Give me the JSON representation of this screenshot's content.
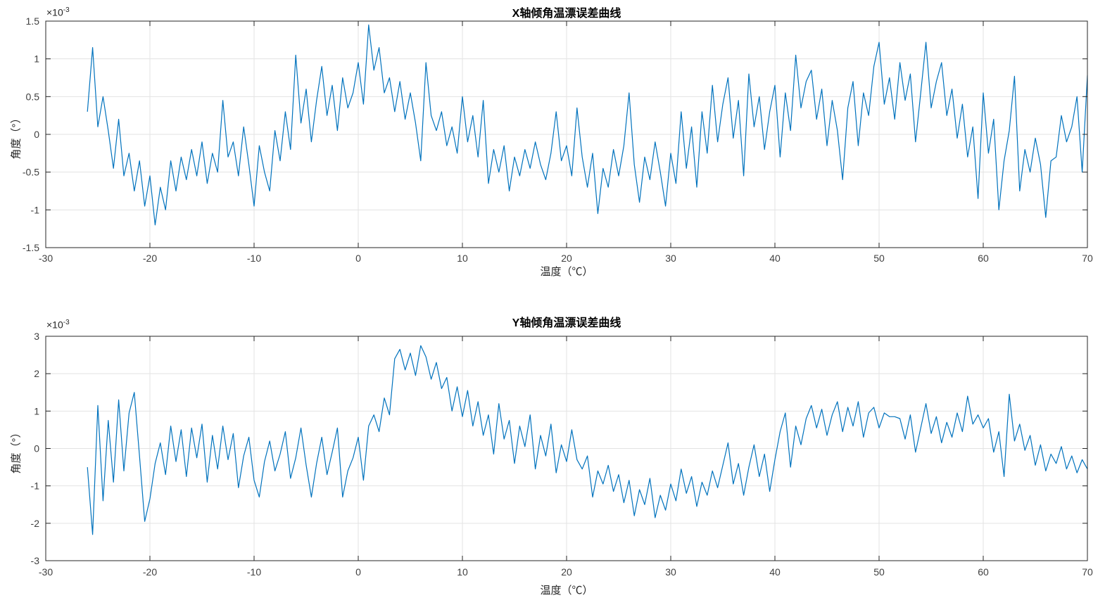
{
  "figure": {
    "background": "#ffffff"
  },
  "charts": [
    {
      "title": "X轴倾角温漂误差曲线",
      "xlabel": "温度（℃）",
      "ylabel": "角度（°）",
      "y_exp_base": "×10",
      "y_exp_power": "-3",
      "xtick_labels": [
        "-30",
        "-20",
        "-10",
        "0",
        "10",
        "20",
        "30",
        "40",
        "50",
        "60",
        "70"
      ],
      "ytick_labels": [
        "-1.5",
        "-1",
        "-0.5",
        "0",
        "0.5",
        "1",
        "1.5"
      ]
    },
    {
      "title": "Y轴倾角温漂误差曲线",
      "xlabel": "温度（℃）",
      "ylabel": "角度（°）",
      "y_exp_base": "×10",
      "y_exp_power": "-3",
      "xtick_labels": [
        "-30",
        "-20",
        "-10",
        "0",
        "10",
        "20",
        "30",
        "40",
        "50",
        "60",
        "70"
      ],
      "ytick_labels": [
        "-3",
        "-2",
        "-1",
        "0",
        "1",
        "2",
        "3"
      ]
    }
  ],
  "chart_data": [
    {
      "type": "line",
      "title": "X轴倾角温漂误差曲线",
      "xlabel": "温度（℃）",
      "ylabel": "角度（°）",
      "xlim": [
        -30,
        70
      ],
      "ylim_scaled": [
        -1.5,
        1.5
      ],
      "value_scale": 0.001,
      "xticks": [
        -30,
        -20,
        -10,
        0,
        10,
        20,
        30,
        40,
        50,
        60,
        70
      ],
      "yticks_scaled": [
        -1.5,
        -1,
        -0.5,
        0,
        0.5,
        1,
        1.5
      ],
      "grid": true,
      "legend": "none",
      "line_color": "#0072BD",
      "x_start": -26,
      "x_step": 0.5,
      "values_x1e3": [
        0.3,
        1.15,
        0.1,
        0.5,
        0.05,
        -0.45,
        0.2,
        -0.55,
        -0.25,
        -0.75,
        -0.35,
        -0.95,
        -0.55,
        -1.2,
        -0.7,
        -1.0,
        -0.35,
        -0.75,
        -0.3,
        -0.6,
        -0.2,
        -0.55,
        -0.1,
        -0.65,
        -0.25,
        -0.5,
        0.45,
        -0.3,
        -0.1,
        -0.55,
        0.1,
        -0.4,
        -0.95,
        -0.15,
        -0.5,
        -0.75,
        0.05,
        -0.35,
        0.3,
        -0.2,
        1.05,
        0.15,
        0.6,
        -0.1,
        0.45,
        0.9,
        0.25,
        0.65,
        0.05,
        0.75,
        0.35,
        0.55,
        0.95,
        0.4,
        1.45,
        0.85,
        1.15,
        0.55,
        0.75,
        0.3,
        0.7,
        0.2,
        0.55,
        0.15,
        -0.35,
        0.95,
        0.25,
        0.05,
        0.3,
        -0.15,
        0.1,
        -0.25,
        0.5,
        -0.1,
        0.25,
        -0.3,
        0.45,
        -0.65,
        -0.2,
        -0.5,
        -0.15,
        -0.75,
        -0.3,
        -0.55,
        -0.2,
        -0.45,
        -0.1,
        -0.4,
        -0.6,
        -0.25,
        0.3,
        -0.35,
        -0.15,
        -0.55,
        0.35,
        -0.3,
        -0.7,
        -0.25,
        -1.05,
        -0.45,
        -0.7,
        -0.2,
        -0.55,
        -0.15,
        0.55,
        -0.4,
        -0.9,
        -0.3,
        -0.6,
        -0.1,
        -0.5,
        -0.95,
        -0.25,
        -0.65,
        0.3,
        -0.45,
        0.1,
        -0.7,
        0.3,
        -0.25,
        0.65,
        -0.1,
        0.4,
        0.75,
        -0.05,
        0.45,
        -0.55,
        0.8,
        0.1,
        0.5,
        -0.2,
        0.3,
        0.65,
        -0.3,
        0.55,
        0.05,
        1.05,
        0.35,
        0.7,
        0.85,
        0.2,
        0.6,
        -0.15,
        0.45,
        0.05,
        -0.6,
        0.35,
        0.7,
        -0.15,
        0.55,
        0.25,
        0.9,
        1.22,
        0.4,
        0.75,
        0.2,
        0.95,
        0.45,
        0.8,
        -0.1,
        0.55,
        1.22,
        0.35,
        0.7,
        0.95,
        0.25,
        0.6,
        -0.05,
        0.4,
        -0.3,
        0.1,
        -0.85,
        0.55,
        -0.25,
        0.2,
        -1.0,
        -0.35,
        0.05,
        0.77,
        -0.75,
        -0.2,
        -0.5,
        -0.05,
        -0.4,
        -1.1,
        -0.35,
        -0.3,
        0.25,
        -0.1,
        0.1,
        0.5,
        -0.5,
        0.78
      ]
    },
    {
      "type": "line",
      "title": "Y轴倾角温漂误差曲线",
      "xlabel": "温度（℃）",
      "ylabel": "角度（°）",
      "xlim": [
        -30,
        70
      ],
      "ylim_scaled": [
        -3,
        3
      ],
      "value_scale": 0.001,
      "xticks": [
        -30,
        -20,
        -10,
        0,
        10,
        20,
        30,
        40,
        50,
        60,
        70
      ],
      "yticks_scaled": [
        -3,
        -2,
        -1,
        0,
        1,
        2,
        3
      ],
      "grid": true,
      "legend": "none",
      "line_color": "#0072BD",
      "x_start": -26,
      "x_step": 0.5,
      "values_x1e3": [
        -0.5,
        -2.3,
        1.15,
        -1.4,
        0.75,
        -0.9,
        1.3,
        -0.6,
        0.95,
        1.5,
        -0.2,
        -1.95,
        -1.35,
        -0.4,
        0.15,
        -0.7,
        0.6,
        -0.35,
        0.5,
        -0.75,
        0.55,
        -0.25,
        0.65,
        -0.9,
        0.35,
        -0.55,
        0.6,
        -0.3,
        0.4,
        -1.05,
        -0.2,
        0.3,
        -0.85,
        -1.3,
        -0.35,
        0.2,
        -0.6,
        -0.15,
        0.45,
        -0.8,
        -0.25,
        0.55,
        -0.45,
        -1.3,
        -0.4,
        0.3,
        -0.7,
        -0.1,
        0.55,
        -1.3,
        -0.6,
        -0.25,
        0.3,
        -0.85,
        0.6,
        0.9,
        0.45,
        1.35,
        0.9,
        2.4,
        2.65,
        2.1,
        2.55,
        1.95,
        2.75,
        2.45,
        1.85,
        2.3,
        1.6,
        1.9,
        1.0,
        1.65,
        0.85,
        1.55,
        0.6,
        1.25,
        0.35,
        0.9,
        -0.15,
        1.2,
        0.25,
        0.75,
        -0.4,
        0.6,
        0.05,
        0.9,
        -0.55,
        0.35,
        -0.2,
        0.65,
        -0.65,
        0.1,
        -0.35,
        0.5,
        -0.3,
        -0.55,
        -0.2,
        -1.3,
        -0.6,
        -0.95,
        -0.45,
        -1.15,
        -0.7,
        -1.45,
        -0.85,
        -1.8,
        -1.1,
        -1.5,
        -0.8,
        -1.85,
        -1.25,
        -1.65,
        -0.95,
        -1.4,
        -0.55,
        -1.2,
        -0.75,
        -1.55,
        -0.9,
        -1.25,
        -0.6,
        -1.05,
        -0.45,
        0.15,
        -0.95,
        -0.4,
        -1.25,
        -0.5,
        0.1,
        -0.75,
        -0.15,
        -1.15,
        -0.3,
        0.45,
        0.95,
        -0.5,
        0.6,
        0.1,
        0.8,
        1.15,
        0.55,
        1.05,
        0.35,
        0.9,
        1.25,
        0.45,
        1.1,
        0.6,
        1.25,
        0.3,
        0.95,
        1.1,
        0.55,
        0.95,
        0.85,
        0.85,
        0.8,
        0.25,
        0.9,
        -0.1,
        0.55,
        1.2,
        0.4,
        0.85,
        0.15,
        0.7,
        0.3,
        0.95,
        0.45,
        1.4,
        0.65,
        0.9,
        0.55,
        0.8,
        -0.1,
        0.45,
        -0.75,
        1.45,
        0.2,
        0.65,
        -0.05,
        0.35,
        -0.45,
        0.1,
        -0.6,
        -0.15,
        -0.4,
        0.05,
        -0.55,
        -0.2,
        -0.65,
        -0.3,
        -0.55
      ]
    }
  ],
  "style": {
    "line_color": "#0072BD",
    "grid_color": "#e3e3e3",
    "axis_color": "#262626",
    "tick_label_color": "#404040"
  }
}
